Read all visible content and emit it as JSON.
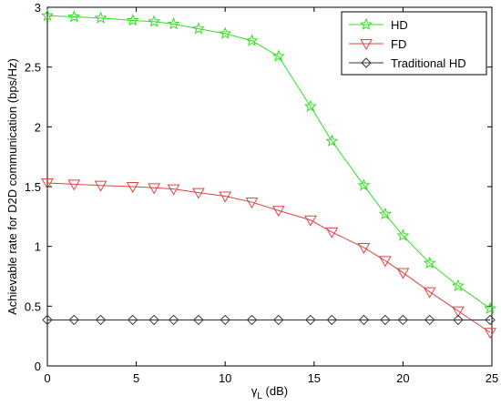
{
  "colors": {
    "hd": "#33dd22",
    "fd": "#dd4444",
    "traditional": "#333333",
    "axis": "#000000"
  },
  "chart_data": {
    "type": "line",
    "xlabel_main": "γ",
    "xlabel_sub": "L",
    "xlabel_unit": " (dB)",
    "ylabel": "Achievable rate for D2D communication (bps/Hz)",
    "xlim": [
      0,
      25
    ],
    "ylim": [
      0,
      3
    ],
    "xticks": [
      0,
      5,
      10,
      15,
      20,
      25
    ],
    "yticks": [
      0,
      0.5,
      1,
      1.5,
      2,
      2.5,
      3
    ],
    "xtick_labels": [
      "0",
      "5",
      "10",
      "15",
      "20",
      "25"
    ],
    "ytick_labels": [
      "0",
      "0.5",
      "1",
      "1.5",
      "2",
      "2.5",
      "3"
    ],
    "grid": false,
    "legend_position": "top-right",
    "series": [
      {
        "name": "HD",
        "marker": "star",
        "color_key": "hd",
        "x": [
          0,
          1.5,
          3.0,
          4.8,
          6.0,
          7.1,
          8.5,
          10.0,
          11.5,
          13.0,
          14.8,
          16.0,
          17.8,
          19.0,
          20.0,
          21.5,
          23.1,
          24.9
        ],
        "y": [
          2.93,
          2.92,
          2.91,
          2.89,
          2.88,
          2.86,
          2.82,
          2.78,
          2.72,
          2.59,
          2.17,
          1.88,
          1.51,
          1.27,
          1.09,
          0.86,
          0.67,
          0.48
        ]
      },
      {
        "name": "FD",
        "marker": "triangle-down",
        "color_key": "fd",
        "x": [
          0,
          1.5,
          3.0,
          4.8,
          6.0,
          7.1,
          8.5,
          10.0,
          11.5,
          13.0,
          14.8,
          16.0,
          17.8,
          19.0,
          20.0,
          21.5,
          23.1,
          24.9
        ],
        "y": [
          1.53,
          1.52,
          1.51,
          1.5,
          1.49,
          1.48,
          1.45,
          1.42,
          1.37,
          1.3,
          1.22,
          1.12,
          0.99,
          0.88,
          0.78,
          0.62,
          0.46,
          0.28
        ]
      },
      {
        "name": "Traditional HD",
        "marker": "diamond",
        "color_key": "traditional",
        "x": [
          0,
          1.5,
          3.0,
          4.8,
          6.0,
          7.1,
          8.5,
          10.0,
          11.5,
          13.0,
          14.8,
          16.0,
          17.8,
          19.0,
          20.0,
          21.5,
          23.1,
          24.9
        ],
        "y": [
          0.385,
          0.385,
          0.385,
          0.385,
          0.385,
          0.385,
          0.385,
          0.385,
          0.385,
          0.385,
          0.385,
          0.385,
          0.385,
          0.385,
          0.385,
          0.385,
          0.385,
          0.385
        ]
      }
    ]
  }
}
